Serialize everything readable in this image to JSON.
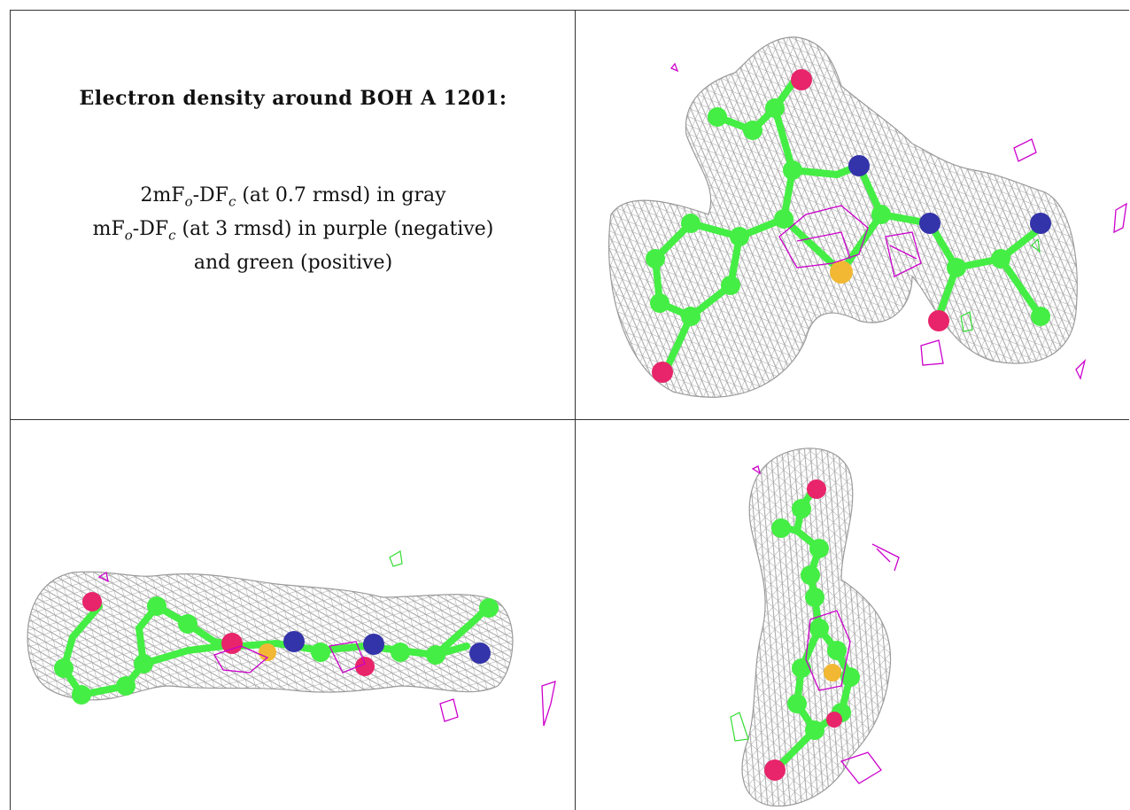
{
  "caption": {
    "title": "Electron density around BOH A 1201:",
    "line1_a": "2mF",
    "line1_sub1": "o",
    "line1_b": "-DF",
    "line1_sub2": "c",
    "line1_c": " (at 0.7 rmsd) in gray",
    "line2_a": "mF",
    "line2_sub1": "o",
    "line2_b": "-DF",
    "line2_sub2": "c",
    "line2_c": " (at 3 rmsd) in purple (negative)",
    "line3": "and green (positive)"
  },
  "colors": {
    "mesh_2fofc": "#9a9a9a",
    "difference_negative": "#cc00cc",
    "difference_positive": "#33dd33",
    "carbon": "#44ee44",
    "oxygen": "#e8246a",
    "nitrogen": "#3333aa",
    "sulfur": "#f2b833",
    "rule": "#333333"
  },
  "panels": [
    {
      "view": "top-right",
      "icon": "ligand-density-front-view"
    },
    {
      "view": "bottom-left",
      "icon": "ligand-density-side-view"
    },
    {
      "view": "bottom-right",
      "icon": "ligand-density-end-view"
    }
  ]
}
